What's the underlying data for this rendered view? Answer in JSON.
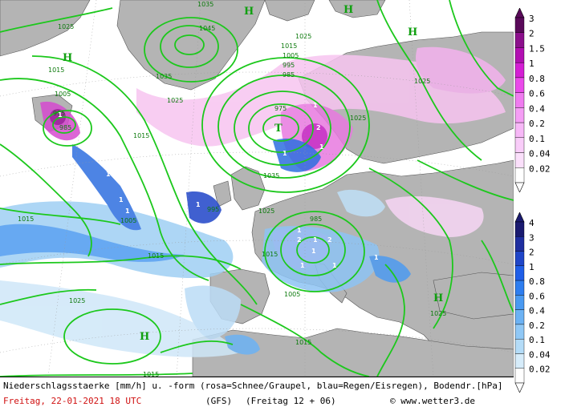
{
  "map": {
    "pressure_centers": [
      {
        "type": "H",
        "label": "H"
      },
      {
        "type": "H",
        "label": "H"
      },
      {
        "type": "H",
        "label": "H"
      },
      {
        "type": "H",
        "label": "H"
      },
      {
        "type": "H",
        "label": "H"
      },
      {
        "type": "H",
        "label": "H"
      },
      {
        "type": "T",
        "label": "T"
      }
    ],
    "isobar_labels": [
      "1035",
      "1045",
      "1035",
      "1025",
      "1015",
      "1015",
      "1005",
      "995",
      "985",
      "1025",
      "1025",
      "1025",
      "975",
      "985",
      "995",
      "1005",
      "1015",
      "1025",
      "1015",
      "1005",
      "995",
      "985",
      "1035",
      "1025",
      "1015",
      "1005",
      "1015",
      "1015",
      "1025",
      "1025",
      "1015"
    ],
    "precip_cell_labels": [
      "1",
      "1",
      "1",
      "1",
      "1",
      "1",
      "1",
      "1",
      "1",
      "1",
      "1",
      "1",
      "1",
      "2",
      "2",
      "2",
      "1",
      "1"
    ],
    "colors": {
      "land": "#b4b4b4",
      "sea": "#ffffff",
      "isobar": "#1cc81c",
      "isobar_label": "#0c7a0c"
    }
  },
  "legend_snow": {
    "values": [
      "3",
      "2",
      "1.5",
      "1",
      "0.8",
      "0.6",
      "0.4",
      "0.2",
      "0.1",
      "0.04",
      "0.02"
    ],
    "colors": [
      "#5a0a5a",
      "#8c0f8c",
      "#b20fb2",
      "#d41fd4",
      "#ea4aea",
      "#f07cf0",
      "#f59ef5",
      "#f7b8f7",
      "#f9cdf9",
      "#fbe0fb",
      "#ffffff"
    ]
  },
  "legend_rain": {
    "values": [
      "4",
      "3",
      "2",
      "1",
      "0.8",
      "0.6",
      "0.4",
      "0.2",
      "0.1",
      "0.04",
      "0.02"
    ],
    "colors": [
      "#1a1a70",
      "#1f2ea0",
      "#1f45c8",
      "#1f5ee8",
      "#2e7ef0",
      "#4a9af2",
      "#6cb2f4",
      "#90c8f6",
      "#b4dcf8",
      "#d6ecfa",
      "#ffffff"
    ]
  },
  "footer": {
    "description": "Niederschlagsstaerke [mm/h] u. -form (rosa=Schnee/Graupel, blau=Regen/Eisregen), Bodendr.[hPa]",
    "date": "Freitag, 22-01-2021  18 UTC",
    "model": "(GFS)",
    "run": "(Freitag 12 + 06)",
    "credit": "© www.wetter3.de"
  }
}
